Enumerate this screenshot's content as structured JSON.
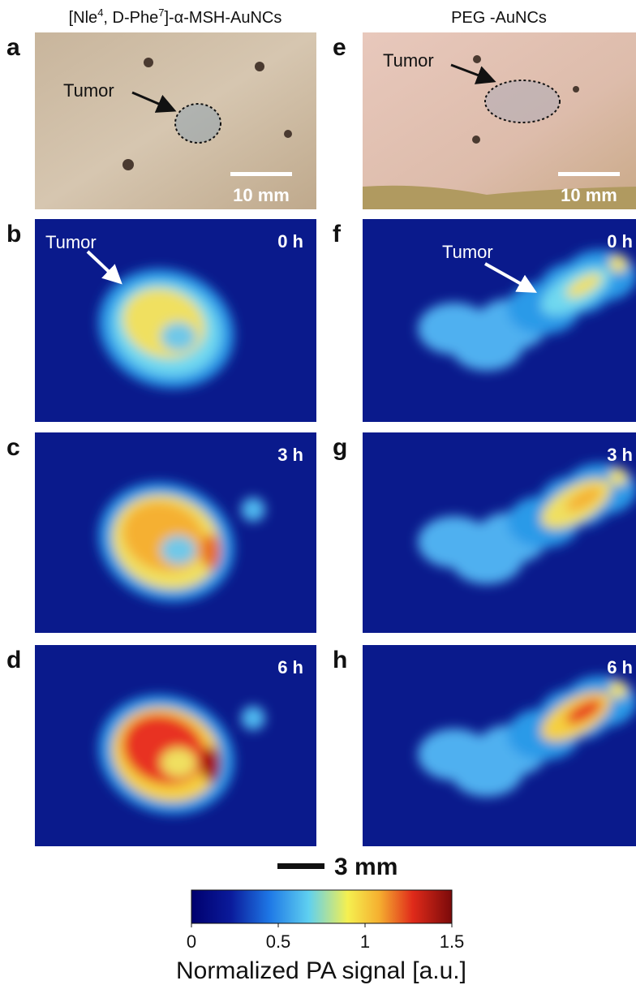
{
  "figure": {
    "columns": [
      {
        "title_parts": [
          "[Nle",
          "4",
          ", D-Phe",
          "7",
          "]-α-MSH-AuNCs"
        ]
      },
      {
        "title": "PEG -AuNCs"
      }
    ],
    "panels": [
      {
        "letter": "a",
        "tumor_label": "Tumor",
        "scale_bar": "10 mm"
      },
      {
        "letter": "b",
        "tumor_label": "Tumor",
        "time": "0 h"
      },
      {
        "letter": "c",
        "time": "3 h"
      },
      {
        "letter": "d",
        "time": "6 h"
      },
      {
        "letter": "e",
        "tumor_label": "Tumor",
        "scale_bar": "10 mm"
      },
      {
        "letter": "f",
        "tumor_label": "Tumor",
        "time": "0 h"
      },
      {
        "letter": "g",
        "time": "3 h"
      },
      {
        "letter": "h",
        "time": "6 h"
      }
    ],
    "scale_bar": "3 mm",
    "colorbar": {
      "label": "Normalized PA signal [a.u.]",
      "range": [
        0,
        1.5
      ],
      "ticks": [
        0,
        0.5,
        1,
        1.5
      ]
    }
  }
}
